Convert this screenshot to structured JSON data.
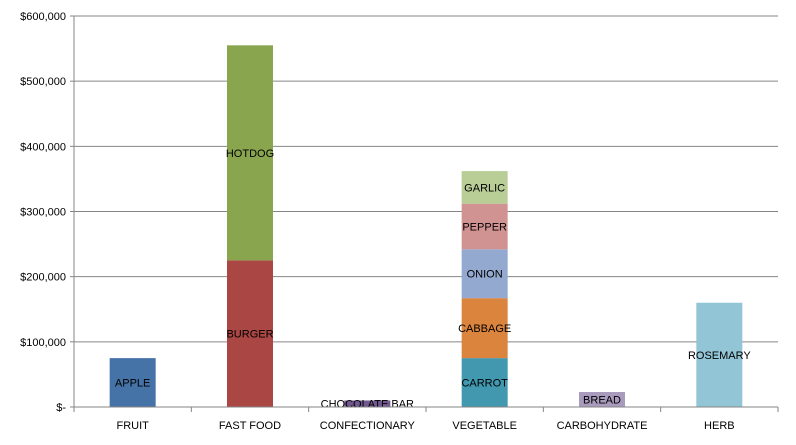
{
  "chart_data": {
    "type": "bar",
    "stacked": true,
    "title": "",
    "xlabel": "",
    "ylabel": "",
    "ylim": [
      0,
      600000
    ],
    "yticks": [
      0,
      100000,
      200000,
      300000,
      400000,
      500000,
      600000
    ],
    "ytick_labels": [
      "$-",
      "$100,000",
      "$200,000",
      "$300,000",
      "$400,000",
      "$500,000",
      "$600,000"
    ],
    "grid": true,
    "legend": "none",
    "categories": [
      "FRUIT",
      "FAST FOOD",
      "CONFECTIONARY",
      "VEGETABLE",
      "CARBOHYDRATE",
      "HERB"
    ],
    "stacks": [
      {
        "category": "FRUIT",
        "segments": [
          {
            "label": "APPLE",
            "value": 75000,
            "color": "#4572A7"
          }
        ]
      },
      {
        "category": "FAST FOOD",
        "segments": [
          {
            "label": "BURGER",
            "value": 225000,
            "color": "#AA4643"
          },
          {
            "label": "HOTDOG",
            "value": 330000,
            "color": "#89A54E"
          }
        ]
      },
      {
        "category": "CONFECTIONARY",
        "segments": [
          {
            "label": "CHOCOLATE BAR",
            "value": 10000,
            "color": "#71588F"
          }
        ]
      },
      {
        "category": "VEGETABLE",
        "segments": [
          {
            "label": "CARROT",
            "value": 75000,
            "color": "#4198AF"
          },
          {
            "label": "CABBAGE",
            "value": 92000,
            "color": "#DB843D"
          },
          {
            "label": "ONION",
            "value": 75000,
            "color": "#93A9CF"
          },
          {
            "label": "PEPPER",
            "value": 70000,
            "color": "#D19392"
          },
          {
            "label": "GARLIC",
            "value": 50000,
            "color": "#B9CD96"
          }
        ]
      },
      {
        "category": "CARBOHYDRATE",
        "segments": [
          {
            "label": "BREAD",
            "value": 23000,
            "color": "#A99BBD"
          }
        ]
      },
      {
        "category": "HERB",
        "segments": [
          {
            "label": "ROSEMARY",
            "value": 160000,
            "color": "#92C5D6"
          }
        ]
      }
    ]
  }
}
